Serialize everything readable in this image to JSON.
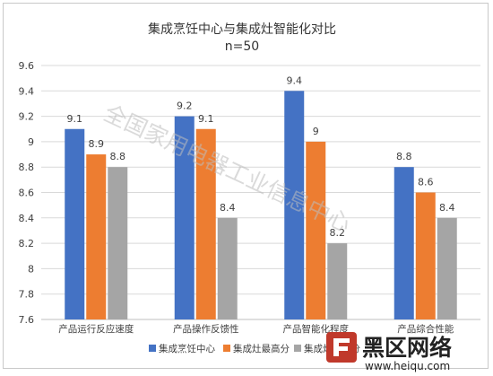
{
  "chart_data": {
    "type": "bar",
    "title": "集成烹饪中心与集成灶智能化对比",
    "subtitle": "n=50",
    "categories": [
      "产品运行反应速度",
      "产品操作反馈性",
      "产品智能化程度",
      "产品综合性能"
    ],
    "series": [
      {
        "name": "集成烹饪中心",
        "color": "#4472C4",
        "values": [
          9.1,
          9.2,
          9.4,
          8.8
        ]
      },
      {
        "name": "集成灶最高分",
        "color": "#ED7D31",
        "values": [
          8.9,
          9.1,
          9.0,
          8.6
        ]
      },
      {
        "name": "集成灶平均分",
        "color": "#A5A5A5",
        "values": [
          8.8,
          8.4,
          8.2,
          8.4
        ]
      }
    ],
    "ylim": [
      7.6,
      9.6
    ],
    "yticks": [
      "7.6",
      "7.8",
      "8",
      "8.2",
      "8.4",
      "8.6",
      "8.8",
      "9",
      "9.2",
      "9.4",
      "9.6"
    ],
    "xlabel": "",
    "ylabel": "",
    "grid": true,
    "legend_position": "bottom",
    "data_labels": [
      [
        "9.1",
        "8.9",
        "8.8"
      ],
      [
        "9.2",
        "9.1",
        "8.4"
      ],
      [
        "9.4",
        "9",
        "8.2"
      ],
      [
        "8.8",
        "8.6",
        "8.4"
      ]
    ]
  },
  "watermark": {
    "text": "全国家用电器工业信息中心"
  },
  "logo": {
    "name": "黑区网络",
    "url": "www.heiqu.com",
    "color": "#c0392b"
  },
  "colors": {
    "grid": "#d9d9d9",
    "axis": "#bfbfbf"
  }
}
